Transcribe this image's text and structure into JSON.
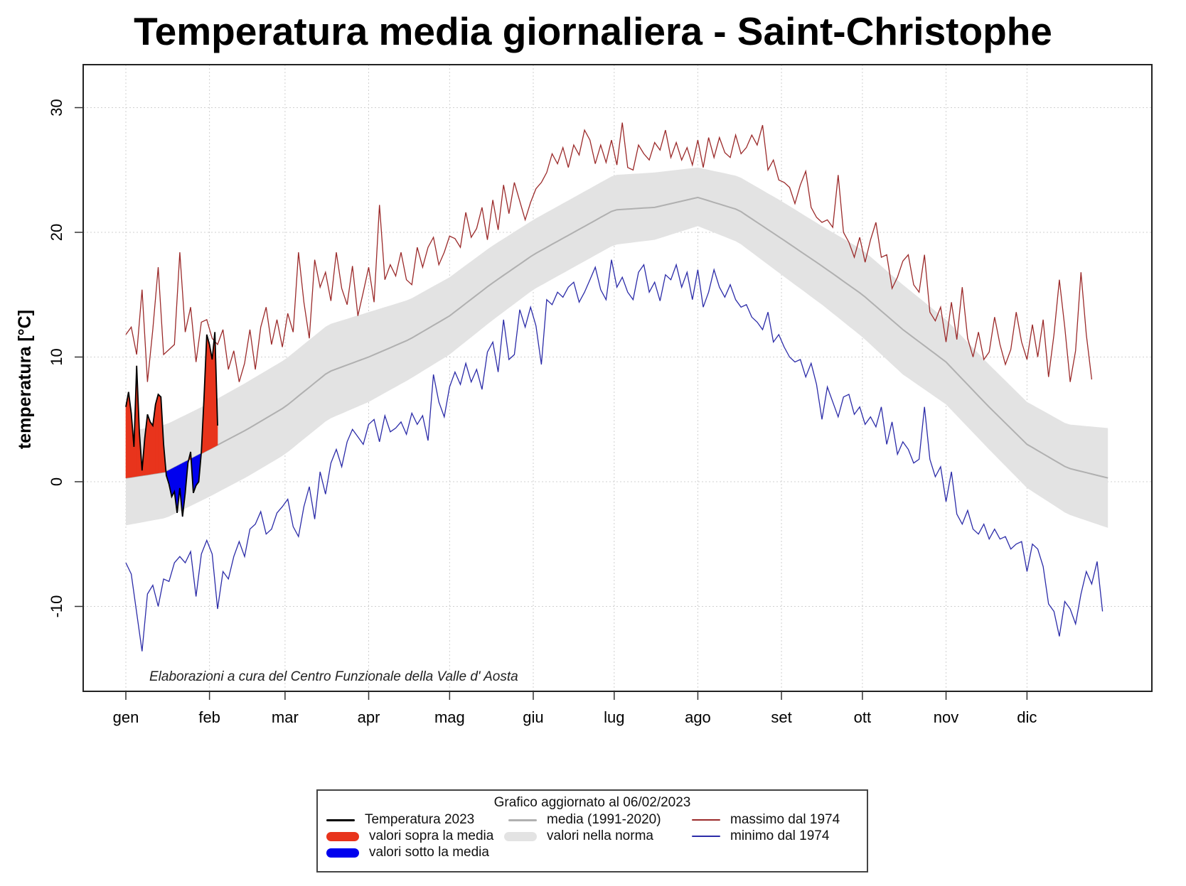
{
  "title": "Temperatura media giornaliera - Saint-Christophe",
  "chart_data": {
    "type": "line",
    "title": "Temperatura media giornaliera - Saint-Christophe",
    "xlabel": "",
    "ylabel": "temperatura [°C]",
    "ylim": [
      -16.5,
      33.5
    ],
    "xlim_days": [
      -15,
      380
    ],
    "yticks": [
      -10,
      0,
      10,
      20,
      30
    ],
    "ytick_labels": [
      "-10",
      "0",
      "10",
      "20",
      "30"
    ],
    "xticks_days": [
      0,
      31,
      59,
      90,
      120,
      151,
      181,
      212,
      243,
      273,
      304,
      334
    ],
    "xtick_labels": [
      "gen",
      "feb",
      "mar",
      "apr",
      "mag",
      "giu",
      "lug",
      "ago",
      "set",
      "ott",
      "nov",
      "dic"
    ],
    "grid": true,
    "caption": "Elaborazioni a cura del Centro Funzionale della Valle d' Aosta",
    "colors": {
      "temp2023": "#000000",
      "above": "#e8341c",
      "below": "#0000ee",
      "mean": "#b0b0b0",
      "band": "#e3e3e3",
      "max": "#9b2a2a",
      "min": "#2b2ba8"
    },
    "series": [
      {
        "name": "Temperatura 2023",
        "x_days": [
          0,
          1,
          2,
          3,
          4,
          5,
          6,
          7,
          8,
          9,
          10,
          11,
          12,
          13,
          14,
          15,
          16,
          17,
          18,
          19,
          20,
          21,
          22,
          23,
          24,
          25,
          26,
          27,
          28,
          29,
          30,
          31,
          32,
          33,
          34,
          35,
          36
        ],
        "values": [
          6.0,
          7.2,
          5.5,
          2.8,
          9.3,
          4.0,
          0.9,
          3.5,
          5.4,
          4.8,
          4.5,
          6.2,
          7.0,
          6.8,
          3.0,
          0.5,
          -0.2,
          -1.2,
          -0.8,
          -2.5,
          -0.5,
          -2.8,
          -0.9,
          1.5,
          2.4,
          -0.9,
          -0.3,
          0.0,
          2.4,
          6.8,
          11.8,
          11.0,
          9.8,
          12.0,
          4.5,
          null,
          null
        ]
      },
      {
        "name": "media (1991-2020)",
        "x_days": [
          0,
          15,
          31,
          45,
          59,
          75,
          90,
          105,
          120,
          135,
          151,
          166,
          181,
          196,
          212,
          227,
          243,
          258,
          273,
          288,
          304,
          319,
          334,
          349,
          364
        ],
        "values": [
          0.3,
          0.8,
          2.6,
          4.2,
          6.0,
          8.8,
          10.0,
          11.4,
          13.3,
          15.8,
          18.2,
          20.0,
          21.8,
          22.0,
          22.8,
          21.8,
          19.5,
          17.3,
          15.0,
          12.2,
          9.6,
          6.2,
          3.0,
          1.1,
          0.3
        ]
      },
      {
        "name": "valori nella norma (upper)",
        "x_days": [
          0,
          15,
          31,
          45,
          59,
          75,
          90,
          105,
          120,
          135,
          151,
          166,
          181,
          196,
          212,
          227,
          243,
          258,
          273,
          288,
          304,
          319,
          334,
          349,
          364
        ],
        "values": [
          4.0,
          4.6,
          6.3,
          8.0,
          9.8,
          12.6,
          13.6,
          14.6,
          16.4,
          18.8,
          21.0,
          22.8,
          24.6,
          24.8,
          25.2,
          24.5,
          22.5,
          20.5,
          18.6,
          15.8,
          13.0,
          9.6,
          6.4,
          4.6,
          4.3
        ]
      },
      {
        "name": "valori nella norma (lower)",
        "x_days": [
          0,
          15,
          31,
          45,
          59,
          75,
          90,
          105,
          120,
          135,
          151,
          166,
          181,
          196,
          212,
          227,
          243,
          258,
          273,
          288,
          304,
          319,
          334,
          349,
          364
        ],
        "values": [
          -3.5,
          -2.9,
          -1.2,
          0.4,
          2.2,
          5.0,
          6.4,
          8.2,
          10.2,
          12.8,
          15.4,
          17.2,
          19.0,
          19.4,
          20.5,
          19.2,
          16.6,
          14.2,
          11.6,
          8.6,
          6.2,
          2.8,
          -0.5,
          -2.6,
          -3.7
        ]
      },
      {
        "name": "massimo dal 1974",
        "x_days": [
          0,
          2,
          4,
          6,
          8,
          10,
          12,
          14,
          16,
          18,
          20,
          22,
          24,
          26,
          28,
          30,
          32,
          34,
          36,
          38,
          40,
          42,
          44,
          46,
          48,
          50,
          52,
          54,
          56,
          58,
          60,
          62,
          64,
          66,
          68,
          70,
          72,
          74,
          76,
          78,
          80,
          82,
          84,
          86,
          88,
          90,
          92,
          94,
          96,
          98,
          100,
          102,
          104,
          106,
          108,
          110,
          112,
          114,
          116,
          118,
          120,
          122,
          124,
          126,
          128,
          130,
          132,
          134,
          136,
          138,
          140,
          142,
          144,
          146,
          148,
          150,
          152,
          154,
          156,
          158,
          160,
          162,
          164,
          166,
          168,
          170,
          172,
          174,
          176,
          178,
          180,
          182,
          184,
          186,
          188,
          190,
          192,
          194,
          196,
          198,
          200,
          202,
          204,
          206,
          208,
          210,
          212,
          214,
          216,
          218,
          220,
          222,
          224,
          226,
          228,
          230,
          232,
          234,
          236,
          238,
          240,
          242,
          244,
          246,
          248,
          250,
          252,
          254,
          256,
          258,
          260,
          262,
          264,
          266,
          268,
          270,
          272,
          274,
          276,
          278,
          280,
          282,
          284,
          286,
          288,
          290,
          292,
          294,
          296,
          298,
          300,
          302,
          304,
          306,
          308,
          310,
          312,
          314,
          316,
          318,
          320,
          322,
          324,
          326,
          328,
          330,
          332,
          334,
          336,
          338,
          340,
          342,
          344,
          346,
          348,
          350,
          352,
          354,
          356,
          358,
          360,
          362,
          364
        ],
        "values": [
          11.8,
          12.4,
          10.2,
          15.4,
          8.0,
          12.2,
          17.2,
          10.2,
          10.6,
          11.0,
          18.4,
          12.0,
          14.0,
          9.6,
          12.8,
          13.0,
          11.5,
          11.0,
          12.2,
          9.0,
          10.5,
          8.0,
          9.5,
          12.2,
          9.0,
          12.4,
          14.0,
          11.0,
          13.0,
          10.8,
          13.5,
          12.0,
          18.4,
          14.4,
          11.5,
          17.8,
          15.6,
          16.8,
          14.5,
          18.4,
          15.5,
          14.2,
          17.3,
          13.3,
          15.2,
          17.2,
          14.4,
          22.2,
          16.2,
          17.4,
          16.5,
          18.4,
          16.2,
          15.8,
          18.8,
          17.2,
          18.8,
          19.6,
          17.4,
          18.4,
          19.7,
          19.5,
          18.8,
          21.6,
          19.6,
          20.3,
          22.0,
          19.4,
          22.6,
          20.2,
          23.8,
          21.5,
          24.0,
          22.5,
          21.0,
          22.4,
          23.5,
          24.0,
          24.8,
          26.3,
          25.5,
          26.8,
          25.2,
          27.0,
          26.2,
          28.2,
          27.4,
          25.5,
          27.0,
          25.6,
          27.4,
          25.4,
          28.8,
          25.2,
          25.0,
          27.0,
          26.3,
          25.8,
          27.2,
          26.6,
          28.2,
          26.0,
          27.2,
          25.8,
          26.8,
          25.4,
          27.4,
          25.2,
          27.6,
          26.0,
          27.6,
          26.4,
          26.0,
          27.8,
          26.3,
          26.8,
          27.8,
          27.0,
          28.6,
          25.0,
          25.8,
          24.2,
          24.0,
          23.6,
          22.3,
          23.8,
          24.9,
          22.0,
          21.2,
          20.8,
          21.0,
          20.4,
          24.6,
          20.0,
          19.2,
          18.0,
          19.6,
          17.6,
          19.4,
          20.8,
          18.0,
          18.2,
          15.5,
          16.4,
          17.7,
          18.2,
          15.8,
          15.2,
          18.2,
          13.6,
          12.9,
          14.0,
          11.2,
          14.4,
          11.4,
          15.6,
          11.5,
          10.0,
          12.0,
          9.8,
          10.4,
          13.2,
          11.0,
          9.4,
          10.6,
          13.6,
          11.2,
          9.8,
          12.6,
          10.0,
          13.0,
          8.4,
          11.8,
          16.2,
          12.4,
          8.0,
          10.5,
          16.8,
          11.8,
          8.2
        ]
      },
      {
        "name": "minimo dal 1974",
        "x_days": [
          0,
          2,
          4,
          6,
          8,
          10,
          12,
          14,
          16,
          18,
          20,
          22,
          24,
          26,
          28,
          30,
          32,
          34,
          36,
          38,
          40,
          42,
          44,
          46,
          48,
          50,
          52,
          54,
          56,
          58,
          60,
          62,
          64,
          66,
          68,
          70,
          72,
          74,
          76,
          78,
          80,
          82,
          84,
          86,
          88,
          90,
          92,
          94,
          96,
          98,
          100,
          102,
          104,
          106,
          108,
          110,
          112,
          114,
          116,
          118,
          120,
          122,
          124,
          126,
          128,
          130,
          132,
          134,
          136,
          138,
          140,
          142,
          144,
          146,
          148,
          150,
          152,
          154,
          156,
          158,
          160,
          162,
          164,
          166,
          168,
          170,
          172,
          174,
          176,
          178,
          180,
          182,
          184,
          186,
          188,
          190,
          192,
          194,
          196,
          198,
          200,
          202,
          204,
          206,
          208,
          210,
          212,
          214,
          216,
          218,
          220,
          222,
          224,
          226,
          228,
          230,
          232,
          234,
          236,
          238,
          240,
          242,
          244,
          246,
          248,
          250,
          252,
          254,
          256,
          258,
          260,
          262,
          264,
          266,
          268,
          270,
          272,
          274,
          276,
          278,
          280,
          282,
          284,
          286,
          288,
          290,
          292,
          294,
          296,
          298,
          300,
          302,
          304,
          306,
          308,
          310,
          312,
          314,
          316,
          318,
          320,
          322,
          324,
          326,
          328,
          330,
          332,
          334,
          336,
          338,
          340,
          342,
          344,
          346,
          348,
          350,
          352,
          354,
          356,
          358,
          360,
          362,
          364
        ],
        "values": [
          -6.5,
          -7.4,
          -10.5,
          -13.6,
          -9.0,
          -8.3,
          -10.0,
          -7.8,
          -8.0,
          -6.5,
          -6.0,
          -6.5,
          -5.6,
          -9.2,
          -5.8,
          -4.7,
          -5.8,
          -10.2,
          -7.2,
          -7.8,
          -6.0,
          -4.8,
          -6.0,
          -3.8,
          -3.4,
          -2.4,
          -4.2,
          -3.8,
          -2.5,
          -2.0,
          -1.4,
          -3.6,
          -4.4,
          -2.0,
          -0.4,
          -3.0,
          0.8,
          -1.0,
          1.5,
          2.6,
          1.2,
          3.2,
          4.2,
          3.6,
          3.0,
          4.6,
          5.0,
          3.2,
          5.3,
          4.0,
          4.3,
          4.8,
          3.8,
          5.5,
          4.6,
          5.3,
          3.3,
          8.6,
          6.4,
          5.2,
          7.6,
          8.8,
          7.8,
          9.5,
          8.0,
          9.0,
          7.4,
          10.4,
          11.2,
          8.8,
          13.0,
          9.8,
          10.2,
          13.8,
          12.4,
          14.0,
          12.5,
          9.4,
          14.6,
          14.2,
          15.2,
          14.8,
          15.6,
          16.0,
          14.4,
          15.2,
          16.2,
          17.2,
          15.4,
          14.6,
          17.8,
          15.6,
          16.4,
          15.2,
          14.6,
          16.8,
          17.4,
          15.2,
          16.0,
          14.5,
          16.6,
          16.2,
          17.4,
          15.6,
          16.8,
          14.6,
          17.0,
          14.0,
          15.2,
          17.0,
          15.6,
          14.8,
          15.8,
          14.6,
          14.0,
          14.2,
          13.2,
          12.8,
          12.2,
          13.6,
          11.2,
          11.8,
          10.8,
          10.0,
          9.6,
          9.8,
          8.4,
          9.5,
          7.8,
          5.0,
          7.6,
          6.4,
          5.2,
          6.8,
          7.0,
          5.4,
          6.0,
          4.6,
          5.2,
          4.4,
          6.0,
          3.0,
          4.8,
          2.2,
          3.2,
          2.6,
          1.5,
          1.8,
          6.0,
          1.8,
          0.4,
          1.2,
          -1.6,
          0.8,
          -2.6,
          -3.4,
          -2.3,
          -3.8,
          -4.2,
          -3.4,
          -4.6,
          -3.8,
          -4.6,
          -4.4,
          -5.4,
          -5.0,
          -4.8,
          -7.2,
          -5.0,
          -5.4,
          -6.8,
          -9.8,
          -10.4,
          -12.4,
          -9.6,
          -10.2,
          -11.4,
          -9.0,
          -7.2,
          -8.2,
          -6.4,
          -10.4
        ]
      }
    ],
    "legend": {
      "position": "bottom-center",
      "title": "Grafico aggiornato al 06/02/2023",
      "items": [
        {
          "label": "Temperatura  2023",
          "symbol": "line",
          "color": "#000000"
        },
        {
          "label": "valori sopra la media",
          "symbol": "fill",
          "color": "#e8341c"
        },
        {
          "label": "valori sotto la media",
          "symbol": "fill",
          "color": "#0000ee"
        },
        {
          "label": "media (1991-2020)",
          "symbol": "line",
          "color": "#b0b0b0"
        },
        {
          "label": "valori nella norma",
          "symbol": "fill",
          "color": "#e3e3e3"
        },
        {
          "label": "massimo dal 1974",
          "symbol": "line",
          "color": "#9b2a2a"
        },
        {
          "label": "minimo dal 1974",
          "symbol": "line",
          "color": "#2b2ba8"
        }
      ]
    }
  }
}
